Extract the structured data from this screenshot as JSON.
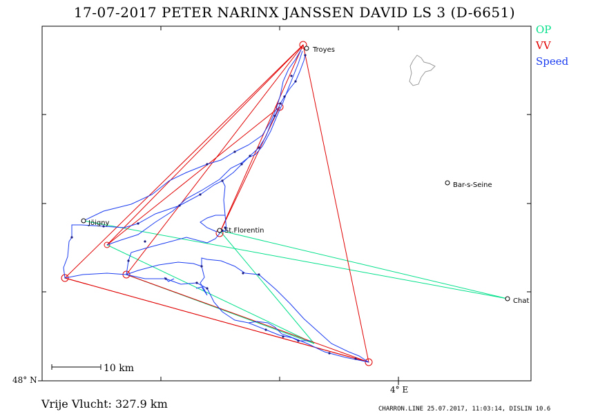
{
  "header": {
    "title": "17-07-2017    PETER NARINX JANSSEN DAVID    LS 3 (D-6651)"
  },
  "legend": [
    {
      "label": "OP",
      "color": "#00e08a"
    },
    {
      "label": "VV",
      "color": "#e00000"
    },
    {
      "label": "Speed",
      "color": "#1a3cf0"
    }
  ],
  "places": [
    {
      "name": "Troyes"
    },
    {
      "name": "Bar-s-Seine"
    },
    {
      "name": "Jöigny"
    },
    {
      "name": "St.Florentin"
    },
    {
      "name": "Chat"
    }
  ],
  "axes": {
    "lat_label": "48° N",
    "lon_label": "4° E"
  },
  "scale": {
    "label": "10 km"
  },
  "footer": {
    "distance": "Vrije Vlucht:  327.9 km",
    "credit": "CHARRON.LINE 25.07.2017, 11:03:14, DISLIN 10.6"
  }
}
